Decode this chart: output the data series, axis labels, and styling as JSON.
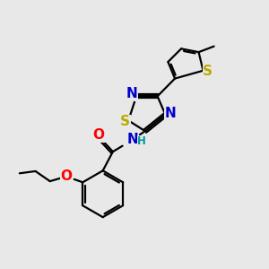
{
  "background_color": "#e8e8e8",
  "atom_colors": {
    "N": "#0000cc",
    "O": "#ff0000",
    "S_yellow": "#bbaa00",
    "H": "#009999"
  },
  "bond_color": "#000000",
  "bond_width": 1.6,
  "font_size_atoms": 11,
  "font_size_small": 8.5
}
